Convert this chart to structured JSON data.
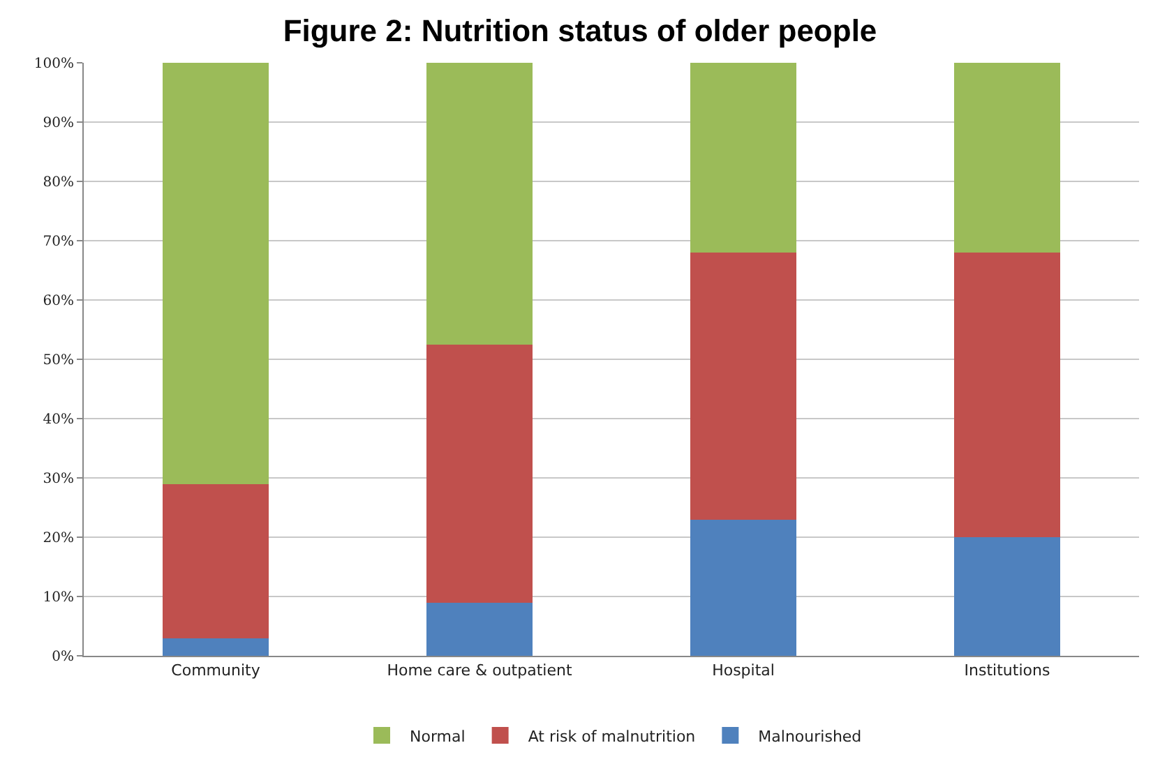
{
  "chart_data": {
    "type": "bar",
    "title": "Figure 2: Nutrition status of older people",
    "categories": [
      "Community",
      "Home care & outpatient",
      "Hospital",
      "Institutions"
    ],
    "stacked": true,
    "series": [
      {
        "name": "Malnourished",
        "color": "#4f81bd",
        "values": [
          3,
          9,
          23,
          20
        ]
      },
      {
        "name": "At risk of malnutrition",
        "color": "#c0504d",
        "values": [
          26,
          43.5,
          45,
          48
        ]
      },
      {
        "name": "Normal",
        "color": "#9bbb59",
        "values": [
          71,
          47.5,
          32,
          32
        ]
      }
    ],
    "ylim": [
      0,
      100
    ],
    "yticks": [
      {
        "value": 0,
        "label": "0%"
      },
      {
        "value": 10,
        "label": "10%"
      },
      {
        "value": 20,
        "label": "20%"
      },
      {
        "value": 30,
        "label": "30%"
      },
      {
        "value": 40,
        "label": "40%"
      },
      {
        "value": 50,
        "label": "50%"
      },
      {
        "value": 60,
        "label": "60%"
      },
      {
        "value": 70,
        "label": "70%"
      },
      {
        "value": 80,
        "label": "80%"
      },
      {
        "value": 90,
        "label": "90%"
      },
      {
        "value": 100,
        "label": "100%"
      }
    ],
    "grid": "y",
    "legend": "bottom"
  }
}
